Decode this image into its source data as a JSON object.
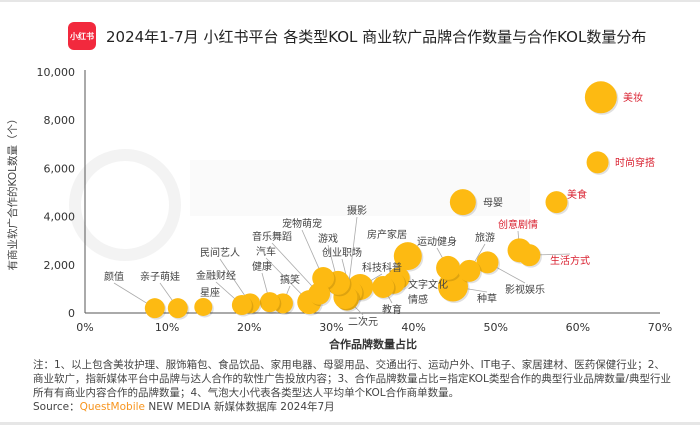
{
  "header": {
    "logo_text": "小红书",
    "title": "2024年1-7月 小红书平台 各类型KOL 商业软广品牌合作数量与合作KOL数量分布"
  },
  "watermark": "QUEST MOBILE",
  "chart_data": {
    "type": "scatter",
    "subtype": "bubble",
    "title": "2024年1-7月 小红书平台 各类型KOL 商业软广品牌合作数量与合作KOL数量分布",
    "xlabel": "合作品牌数量占比",
    "ylabel": "有商业软广合作的KOL数量（个）",
    "xlim": [
      0,
      70
    ],
    "ylim": [
      0,
      10000
    ],
    "x_unit": "%",
    "x_ticks": [
      "0%",
      "10%",
      "20%",
      "30%",
      "40%",
      "50%",
      "60%",
      "70%"
    ],
    "y_ticks": [
      "0",
      "2,000",
      "4,000",
      "6,000",
      "8,000",
      "10,000"
    ],
    "grid": false,
    "colors": {
      "bubble": "#FDBA12",
      "highlight_label": "#D9202F",
      "normal_label": "#444444"
    },
    "points": [
      {
        "name": "美妆",
        "x": 62.8,
        "y": 8950,
        "size": 1.6,
        "highlight": true
      },
      {
        "name": "时尚穿搭",
        "x": 62.4,
        "y": 6250,
        "size": 1.1,
        "highlight": true
      },
      {
        "name": "美食",
        "x": 57.4,
        "y": 4600,
        "size": 1.1,
        "highlight": true
      },
      {
        "name": "母婴",
        "x": 46.0,
        "y": 4600,
        "size": 1.3,
        "highlight": false
      },
      {
        "name": "创意剧情",
        "x": 52.9,
        "y": 2600,
        "size": 1.2,
        "highlight": true
      },
      {
        "name": "生活方式",
        "x": 54.1,
        "y": 2400,
        "size": 1.1,
        "highlight": true
      },
      {
        "name": "影视娱乐",
        "x": 49.0,
        "y": 2100,
        "size": 1.1,
        "highlight": false
      },
      {
        "name": "旅游",
        "x": 46.8,
        "y": 1750,
        "size": 1.1,
        "highlight": false
      },
      {
        "name": "运动健身",
        "x": 44.2,
        "y": 1870,
        "size": 1.2,
        "highlight": false
      },
      {
        "name": "种草",
        "x": 44.8,
        "y": 1100,
        "size": 1.5,
        "highlight": false
      },
      {
        "name": "房产家居",
        "x": 39.3,
        "y": 2360,
        "size": 1.4,
        "highlight": false
      },
      {
        "name": "文字文化",
        "x": 38.2,
        "y": 1450,
        "size": 1.1,
        "highlight": false
      },
      {
        "name": "情感",
        "x": 37.6,
        "y": 1250,
        "size": 1.1,
        "highlight": false
      },
      {
        "name": "教育",
        "x": 36.3,
        "y": 1080,
        "size": 1.1,
        "highlight": false
      },
      {
        "name": "科技科普",
        "x": 33.5,
        "y": 1080,
        "size": 1.3,
        "highlight": false
      },
      {
        "name": "创业职场",
        "x": 32.3,
        "y": 870,
        "size": 1.2,
        "highlight": false
      },
      {
        "name": "摄影",
        "x": 31.9,
        "y": 600,
        "size": 1.2,
        "highlight": false
      },
      {
        "name": "二次元",
        "x": 31.7,
        "y": 660,
        "size": 1.2,
        "highlight": false
      },
      {
        "name": "游戏",
        "x": 30.8,
        "y": 1250,
        "size": 1.2,
        "highlight": false
      },
      {
        "name": "宠物萌宠",
        "x": 29.0,
        "y": 1450,
        "size": 1.1,
        "highlight": false
      },
      {
        "name": "音乐舞蹈",
        "x": 28.5,
        "y": 800,
        "size": 1.1,
        "highlight": false
      },
      {
        "name": "汽车",
        "x": 27.3,
        "y": 450,
        "size": 1.2,
        "highlight": false
      },
      {
        "name": "搞笑",
        "x": 24.1,
        "y": 400,
        "size": 1.0,
        "highlight": false
      },
      {
        "name": "健康",
        "x": 22.5,
        "y": 450,
        "size": 1.0,
        "highlight": false
      },
      {
        "name": "民间艺人",
        "x": 20.1,
        "y": 400,
        "size": 1.0,
        "highlight": false
      },
      {
        "name": "金融财经",
        "x": 19.1,
        "y": 330,
        "size": 1.0,
        "highlight": false
      },
      {
        "name": "星座",
        "x": 14.4,
        "y": 250,
        "size": 0.9,
        "highlight": false
      },
      {
        "name": "亲子萌娃",
        "x": 11.3,
        "y": 200,
        "size": 1.0,
        "highlight": false
      },
      {
        "name": "颜值",
        "x": 8.5,
        "y": 200,
        "size": 1.0,
        "highlight": false
      }
    ]
  },
  "notes": {
    "text": "注：1、以上包含美妆护理、服饰箱包、食品饮品、家用电器、母婴用品、交通出行、运动户外、IT电子、家居建材、医药保健行业；2、商业软广，指新媒体平台中品牌与达人合作的软性广告投放内容；3、合作品牌数量占比=指定KOL类型合作的典型行业品牌数量/典型行业所有有商业内容合作的品牌数量；4、气泡大小代表各类型达人平均单个KOL合作商单数量。",
    "source_label": "Source：",
    "source_brand": "QuestMobile",
    "source_rest": " NEW MEDIA 新媒体数据库 2024年7月"
  }
}
